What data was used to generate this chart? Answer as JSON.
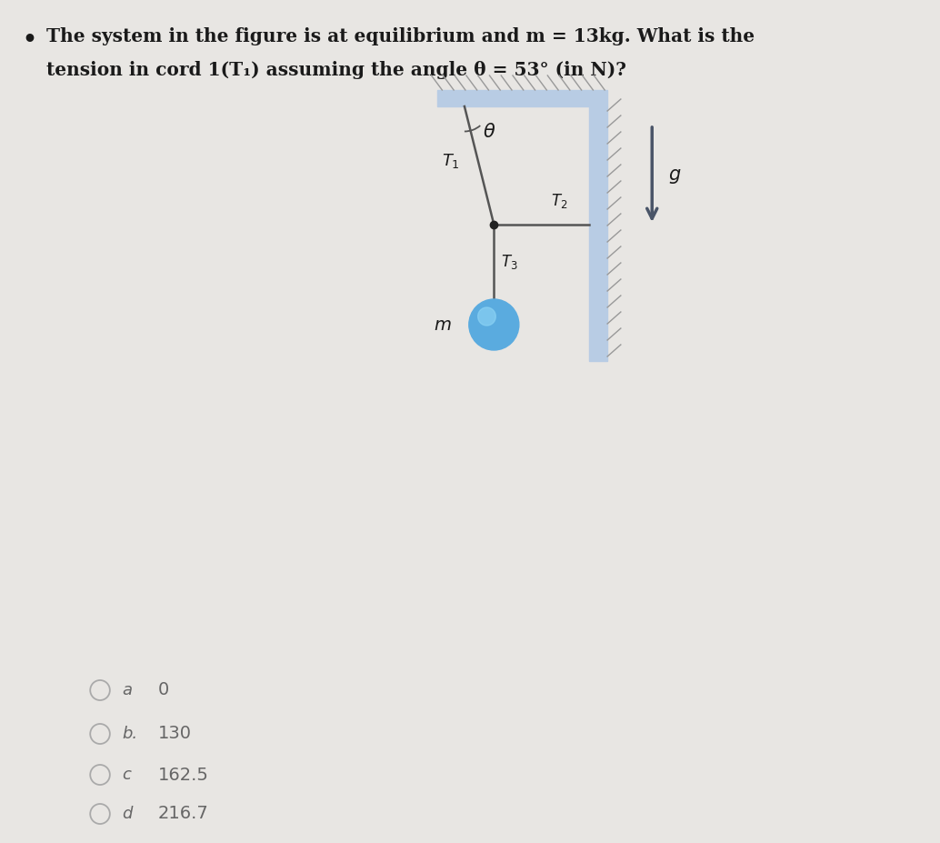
{
  "background_color": "#e8e6e3",
  "wall_color": "#b8cce4",
  "wall_edge_color": "#8fafc8",
  "cord_color": "#555555",
  "arrow_color": "#4a5568",
  "ball_color": "#5aabdf",
  "ball_highlight": "#8dd4f5",
  "text_color": "#1a1a1a",
  "choice_color": "#666666",
  "hatch_color": "#999999",
  "knot_color": "#222222",
  "question_line1": "The system in the figure is at equilibrium and m = 13kg. What is the",
  "question_line2": "tension in cord 1(T₁) assuming the angle θ = 53° (in N)?",
  "choices": [
    {
      "label": "a",
      "value": "0"
    },
    {
      "label": "b.",
      "value": "130"
    },
    {
      "label": "c",
      "value": "162.5"
    },
    {
      "label": "d",
      "value": "216.7"
    }
  ]
}
